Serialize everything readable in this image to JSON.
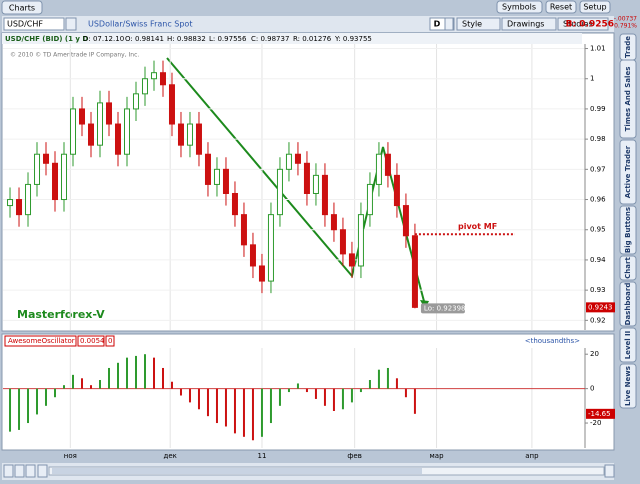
{
  "app": {
    "tab": "Charts",
    "buttons": [
      "Symbols",
      "Reset",
      "Setup"
    ],
    "side_tabs": [
      "Trade",
      "Times And Sales",
      "Active Trader",
      "Big Buttons",
      "Chart",
      "Dashboard",
      "Level II",
      "Live News"
    ]
  },
  "toolbar": {
    "symbol": "USD/CHF",
    "description": "USDollar/Swiss Franc Spot",
    "period": "D",
    "style": "Style",
    "drawings": "Drawings",
    "studies": "Studies",
    "bid": "B: 0.9256",
    "change": "-.00737",
    "change_pct": "-0.791%"
  },
  "info": {
    "title": "USD/CHF (BID) (1 y D",
    "date": "D: 07.12.10",
    "open": "O: 0.98141",
    "high": "H: 0.98832",
    "low": "L: 0.97556",
    "close": "C: 0.98737",
    "range": "R: 0.01276",
    "y": "Y: 0.93755"
  },
  "copyright": "© 2010 © TD Ameritrade IP Company, Inc.",
  "chart_data": [
    {
      "type": "candlestick",
      "open": [
        0.958,
        0.96,
        0.955,
        0.965,
        0.975,
        0.972,
        0.96,
        0.975,
        0.99,
        0.985,
        0.978,
        0.992,
        0.985,
        0.975,
        0.99,
        0.995,
        1.0,
        1.002,
        0.998,
        0.985,
        0.978,
        0.985,
        0.975,
        0.965,
        0.97,
        0.962,
        0.955,
        0.945,
        0.938,
        0.933,
        0.955,
        0.97,
        0.975,
        0.972,
        0.962,
        0.968,
        0.955,
        0.95,
        0.942,
        0.938,
        0.955,
        0.965,
        0.975,
        0.968,
        0.958,
        0.948
      ],
      "high": [
        0.964,
        0.964,
        0.969,
        0.979,
        0.979,
        0.976,
        0.979,
        0.994,
        0.994,
        0.989,
        0.996,
        0.996,
        0.989,
        0.994,
        0.999,
        1.004,
        1.006,
        1.006,
        1.002,
        0.989,
        0.989,
        0.989,
        0.979,
        0.974,
        0.974,
        0.966,
        0.959,
        0.949,
        0.942,
        0.959,
        0.974,
        0.979,
        0.979,
        0.976,
        0.972,
        0.972,
        0.959,
        0.954,
        0.946,
        0.959,
        0.969,
        0.979,
        0.979,
        0.972,
        0.962,
        0.952
      ],
      "low": [
        0.954,
        0.951,
        0.951,
        0.961,
        0.968,
        0.956,
        0.956,
        0.971,
        0.981,
        0.974,
        0.974,
        0.981,
        0.971,
        0.971,
        0.986,
        0.991,
        0.996,
        0.994,
        0.981,
        0.974,
        0.974,
        0.971,
        0.961,
        0.961,
        0.958,
        0.951,
        0.941,
        0.934,
        0.929,
        0.929,
        0.951,
        0.966,
        0.968,
        0.958,
        0.958,
        0.951,
        0.946,
        0.938,
        0.934,
        0.934,
        0.951,
        0.961,
        0.964,
        0.954,
        0.944,
        0.92398
      ],
      "close": [
        0.96,
        0.955,
        0.965,
        0.975,
        0.972,
        0.96,
        0.975,
        0.99,
        0.985,
        0.978,
        0.992,
        0.985,
        0.975,
        0.99,
        0.995,
        1.0,
        1.002,
        0.998,
        0.985,
        0.978,
        0.985,
        0.975,
        0.965,
        0.97,
        0.962,
        0.955,
        0.945,
        0.938,
        0.933,
        0.955,
        0.97,
        0.975,
        0.972,
        0.962,
        0.968,
        0.955,
        0.95,
        0.942,
        0.938,
        0.955,
        0.965,
        0.975,
        0.968,
        0.958,
        0.948,
        0.9243
      ],
      "up_color": "#2e9a2e",
      "down_color": "#cc1111",
      "xlim": [
        -0.78,
        63.9
      ],
      "xticks": [
        {
          "value": 6.7,
          "label": "ноя"
        },
        {
          "value": 17.8,
          "label": "дек"
        },
        {
          "value": 28,
          "label": "11"
        },
        {
          "value": 38.3,
          "label": "фев"
        },
        {
          "value": 47.4,
          "label": "мар"
        },
        {
          "value": 58,
          "label": "апр"
        }
      ],
      "ylim": [
        0.9168,
        1.0115
      ],
      "yticks": [
        1.01,
        1,
        0.99,
        0.98,
        0.97,
        0.96,
        0.95,
        0.94,
        0.93,
        0.92
      ],
      "annotation": "Masterforex-V",
      "pivot": {
        "label": "pivot MF",
        "value": 0.9485,
        "color": "#cc1111"
      },
      "low_label": "Lo: 0.92398"
    },
    {
      "type": "bar",
      "name": "AwesomeOscillator",
      "value_label": "0.0054",
      "param": "0",
      "unit": "<thousandths>",
      "values": [
        -25,
        -24,
        -20,
        -15,
        -10,
        -5,
        2,
        8,
        6,
        2,
        5,
        12,
        15,
        18,
        19,
        20,
        18,
        12,
        4,
        -4,
        -8,
        -12,
        -16,
        -20,
        -22,
        -26,
        -28,
        -30,
        -28,
        -20,
        -10,
        -2,
        3,
        -2,
        -6,
        -10,
        -13,
        -12,
        -8,
        -2,
        5,
        11,
        12,
        6,
        -5,
        -14.65
      ],
      "up_color": "#2e9a2e",
      "down_color": "#cc1111",
      "ylim": [
        -34.5,
        23.6
      ],
      "yticks": [
        20,
        0,
        -20
      ]
    }
  ]
}
